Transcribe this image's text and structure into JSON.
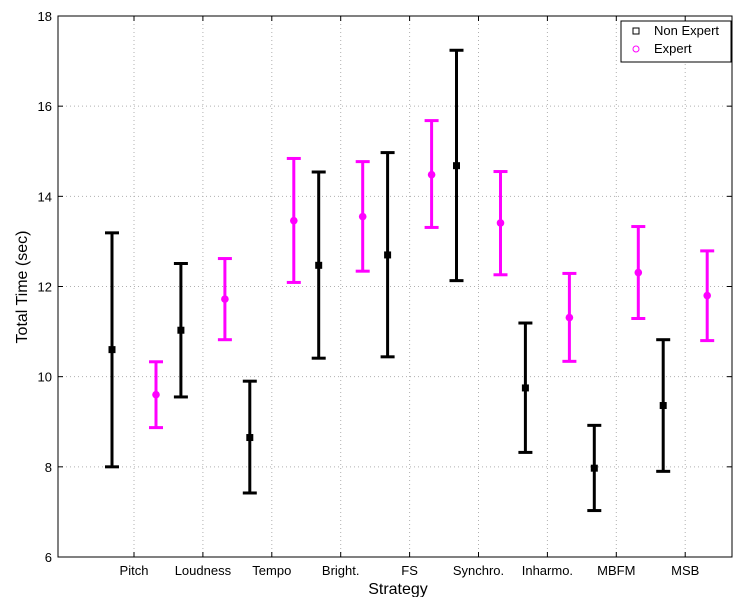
{
  "chart_data": {
    "type": "scatter",
    "subtype": "errorbar",
    "xlabel": "Strategy",
    "ylabel": "Total Time (sec)",
    "categories": [
      "Pitch",
      "Loudness",
      "Tempo",
      "Bright.",
      "FS",
      "Synchro.",
      "Inharmo.",
      "MBFM",
      "MSB"
    ],
    "ylim": [
      6,
      18
    ],
    "yticks": [
      "6",
      "8",
      "10",
      "12",
      "14",
      "16",
      "18"
    ],
    "grid": true,
    "legend_position": "top-right",
    "series": [
      {
        "name": "Non Expert",
        "color": "#000000",
        "marker": "square",
        "values": [
          10.6,
          11.03,
          8.65,
          12.47,
          12.7,
          14.68,
          9.75,
          7.97,
          9.36
        ],
        "lower": [
          8.0,
          9.55,
          7.42,
          10.41,
          10.44,
          12.13,
          8.32,
          7.03,
          7.9
        ],
        "upper": [
          13.19,
          12.51,
          9.9,
          14.54,
          14.97,
          17.24,
          11.19,
          8.92,
          10.82
        ]
      },
      {
        "name": "Expert",
        "color": "#ff00ff",
        "marker": "circle",
        "values": [
          9.6,
          11.72,
          13.46,
          13.55,
          14.48,
          13.41,
          11.31,
          12.31,
          11.8
        ],
        "lower": [
          8.87,
          10.82,
          12.09,
          12.34,
          13.31,
          12.26,
          10.34,
          11.29,
          10.8
        ],
        "upper": [
          10.33,
          12.62,
          14.84,
          14.77,
          15.68,
          14.55,
          12.29,
          13.33,
          12.79
        ]
      }
    ]
  }
}
